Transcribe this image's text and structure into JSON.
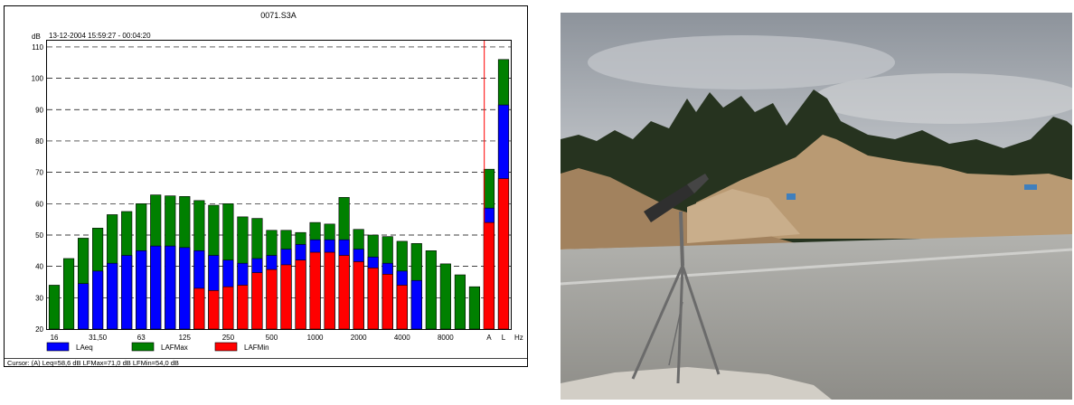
{
  "chart_data": {
    "type": "bar",
    "title": "0071.S3A",
    "subtitle": "13-12-2004 15:59:27 - 00:04:20",
    "ylabel": "dB",
    "xlabel": "Hz",
    "ylim": [
      20,
      112
    ],
    "yticks": [
      20,
      30,
      40,
      50,
      60,
      70,
      80,
      90,
      100,
      110
    ],
    "grid": true,
    "legend_position": "bottom-left",
    "series": [
      {
        "name": "LAeq",
        "color": "#0000ff",
        "values": [
          null,
          null,
          34.5,
          38.5,
          41,
          43.5,
          45,
          46.5,
          46.5,
          46,
          45,
          43.5,
          42,
          41,
          42.5,
          43.5,
          45.5,
          47,
          48.5,
          48.5,
          48.5,
          45.5,
          43,
          41,
          38.5,
          35.5,
          null,
          null,
          null,
          null,
          58.6,
          91.5
        ]
      },
      {
        "name": "LAFMax",
        "color": "#008000",
        "values": [
          34,
          42.5,
          49,
          52.2,
          56.5,
          57.5,
          60,
          62.8,
          62.5,
          62.3,
          61,
          59.5,
          60,
          55.8,
          55.3,
          51.5,
          51.5,
          50.8,
          54,
          53.5,
          62,
          51.8,
          50,
          49.5,
          48,
          47.3,
          45,
          40.8,
          37.3,
          33.5,
          71,
          106
        ]
      },
      {
        "name": "LAFMin",
        "color": "#ff0000",
        "values": [
          null,
          null,
          null,
          null,
          null,
          null,
          null,
          null,
          null,
          null,
          33,
          32.3,
          33.5,
          34,
          38,
          39,
          40.5,
          42,
          44.5,
          44.5,
          43.5,
          41.5,
          39.5,
          37.5,
          34,
          null,
          null,
          null,
          null,
          null,
          54,
          68
        ]
      }
    ],
    "x_tick_labels": [
      {
        "index": 0,
        "label": "16"
      },
      {
        "index": 3,
        "label": "31,50"
      },
      {
        "index": 6,
        "label": "63"
      },
      {
        "index": 9,
        "label": "125"
      },
      {
        "index": 12,
        "label": "250"
      },
      {
        "index": 15,
        "label": "500"
      },
      {
        "index": 18,
        "label": "1000"
      },
      {
        "index": 21,
        "label": "2000"
      },
      {
        "index": 24,
        "label": "4000"
      },
      {
        "index": 27,
        "label": "8000"
      },
      {
        "index": 30,
        "label": "A"
      },
      {
        "index": 31,
        "label": "L"
      }
    ],
    "cursor_index": 30,
    "cursor_text": "Cursor: (A)  Leq=58,6 dB  LFMax=71,0 dB  LFMin=54,0 dB"
  },
  "photo": {
    "sky": "#a9aeb5",
    "treeline": "#24321f",
    "sand": "#b89874",
    "road": "#a9a9a5",
    "tripod": "#6b6b6b",
    "sign": "#3f7fbd"
  }
}
